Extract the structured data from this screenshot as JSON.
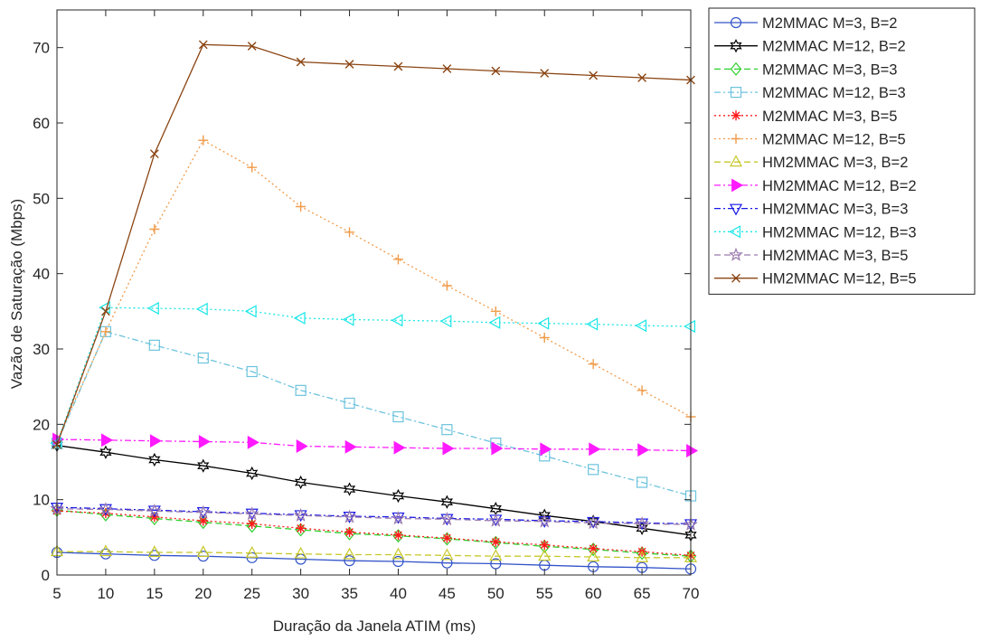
{
  "chart_data": {
    "type": "line",
    "title": "",
    "xlabel": "Duração da Janela ATIM (ms)",
    "ylabel": "Vazão de Saturação (Mbps)",
    "xlim": [
      5,
      70
    ],
    "ylim": [
      0,
      75
    ],
    "xticks": [
      5,
      10,
      15,
      20,
      25,
      30,
      35,
      40,
      45,
      50,
      55,
      60,
      65,
      70
    ],
    "yticks": [
      0,
      10,
      20,
      30,
      40,
      50,
      60,
      70
    ],
    "grid": false,
    "legend_position": "outside-right",
    "x": [
      5,
      10,
      15,
      20,
      25,
      30,
      35,
      40,
      45,
      50,
      55,
      60,
      65,
      70
    ],
    "series": [
      {
        "name": "M2MMAC M=3, B=2",
        "color": "#3354c8",
        "dash": "solid",
        "marker": "circle",
        "values": [
          3.0,
          2.8,
          2.6,
          2.5,
          2.3,
          2.1,
          1.9,
          1.8,
          1.6,
          1.5,
          1.3,
          1.1,
          1.0,
          0.8
        ]
      },
      {
        "name": "M2MMAC M=12, B=2",
        "color": "#000000",
        "dash": "solid",
        "marker": "hexagram",
        "values": [
          17.2,
          16.3,
          15.3,
          14.5,
          13.5,
          12.3,
          11.4,
          10.5,
          9.7,
          8.8,
          7.9,
          7.1,
          6.2,
          5.3
        ]
      },
      {
        "name": "M2MMAC M=3, B=3",
        "color": "#2fd02f",
        "dash": "dash",
        "marker": "diamond",
        "values": [
          8.6,
          8.0,
          7.5,
          7.0,
          6.5,
          6.0,
          5.5,
          5.2,
          4.8,
          4.3,
          3.8,
          3.4,
          2.9,
          2.5
        ]
      },
      {
        "name": "M2MMAC M=12, B=3",
        "color": "#6cc3dd",
        "dash": "dashdot",
        "marker": "square",
        "values": [
          17.5,
          32.3,
          30.5,
          28.8,
          27.0,
          24.5,
          22.8,
          21.0,
          19.3,
          17.5,
          15.8,
          14.0,
          12.3,
          10.5
        ]
      },
      {
        "name": "M2MMAC M=3, B=5",
        "color": "#ff1a1a",
        "dash": "dot",
        "marker": "asterisk",
        "values": [
          8.5,
          8.2,
          7.7,
          7.2,
          6.8,
          6.2,
          5.7,
          5.3,
          4.9,
          4.4,
          4.0,
          3.5,
          3.1,
          2.6
        ]
      },
      {
        "name": "M2MMAC M=12, B=5",
        "color": "#f09c4a",
        "dash": "dot",
        "marker": "plus",
        "values": [
          17.8,
          32.3,
          45.9,
          57.7,
          54.1,
          48.9,
          45.5,
          41.9,
          38.4,
          35.0,
          31.5,
          28.0,
          24.5,
          21.0
        ]
      },
      {
        "name": "HM2MMAC M=3, B=2",
        "color": "#c8c82a",
        "dash": "dash",
        "marker": "triangle-up",
        "values": [
          3.1,
          3.1,
          3.0,
          3.0,
          2.9,
          2.8,
          2.7,
          2.7,
          2.6,
          2.5,
          2.5,
          2.4,
          2.3,
          2.3
        ]
      },
      {
        "name": "HM2MMAC M=12, B=2",
        "color": "#ff1aff",
        "dash": "dashdot",
        "marker": "triangle-right",
        "values": [
          18.0,
          17.9,
          17.8,
          17.7,
          17.6,
          17.1,
          17.0,
          16.9,
          16.8,
          16.8,
          16.7,
          16.7,
          16.6,
          16.5
        ]
      },
      {
        "name": "HM2MMAC M=3, B=3",
        "color": "#1a1ae6",
        "dash": "dashdot",
        "marker": "triangle-down",
        "values": [
          9.0,
          8.8,
          8.6,
          8.4,
          8.2,
          8.0,
          7.8,
          7.7,
          7.5,
          7.4,
          7.2,
          7.1,
          6.9,
          6.8
        ]
      },
      {
        "name": "HM2MMAC M=12, B=3",
        "color": "#1ae6e6",
        "dash": "dot",
        "marker": "triangle-left",
        "values": [
          17.5,
          35.5,
          35.4,
          35.3,
          35.0,
          34.1,
          33.9,
          33.8,
          33.7,
          33.5,
          33.4,
          33.3,
          33.1,
          33.0
        ]
      },
      {
        "name": "HM2MMAC M=3, B=5",
        "color": "#9a7aae",
        "dash": "dash",
        "marker": "pentagram",
        "values": [
          8.8,
          8.7,
          8.5,
          8.3,
          8.1,
          7.9,
          7.7,
          7.5,
          7.4,
          7.2,
          7.1,
          6.9,
          6.8,
          6.7
        ]
      },
      {
        "name": "HM2MMAC M=12, B=5",
        "color": "#8b4513",
        "dash": "solid",
        "marker": "x",
        "values": [
          17.3,
          35.0,
          55.9,
          70.4,
          70.2,
          68.1,
          67.8,
          67.5,
          67.2,
          66.9,
          66.6,
          66.3,
          66.0,
          65.7
        ]
      }
    ]
  }
}
